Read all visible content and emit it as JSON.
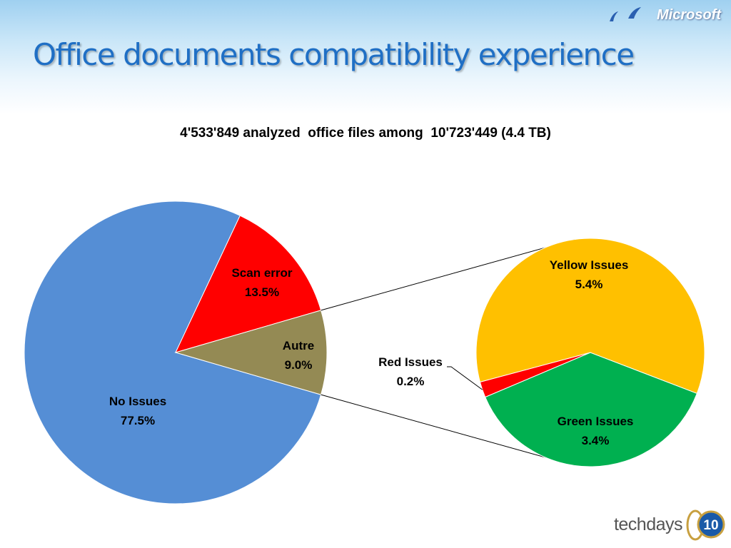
{
  "slide": {
    "title": "Office documents compatibility experience",
    "brand": "Microsoft",
    "event_logo": "techdays",
    "event_number": "10"
  },
  "icons": {
    "brand_birds": "flying-birds-icon",
    "event_badge": "techdays-10-badge-icon"
  },
  "chart_data": {
    "type": "pie",
    "subtitle": "4'533'849 analyzed  office files among  10'723'449 (4.4 TB)",
    "main_pie": {
      "slices": [
        {
          "label": "No Issues",
          "percent_text": "77.5%",
          "value": 77.5,
          "color": "#558ed5"
        },
        {
          "label": "Scan error",
          "percent_text": "13.5%",
          "value": 13.5,
          "color": "#ff0000"
        },
        {
          "label": "Autre",
          "percent_text": "9.0%",
          "value": 9.0,
          "color": "#948a54"
        }
      ],
      "exploded_slice": "Autre"
    },
    "detail_pie": {
      "slices": [
        {
          "label": "Yellow Issues",
          "percent_text": "5.4%",
          "value": 5.4,
          "color": "#ffc000"
        },
        {
          "label": "Green Issues",
          "percent_text": "3.4%",
          "value": 3.4,
          "color": "#00b050"
        },
        {
          "label": "Red Issues",
          "percent_text": "0.2%",
          "value": 0.2,
          "color": "#ff0000"
        }
      ]
    }
  }
}
